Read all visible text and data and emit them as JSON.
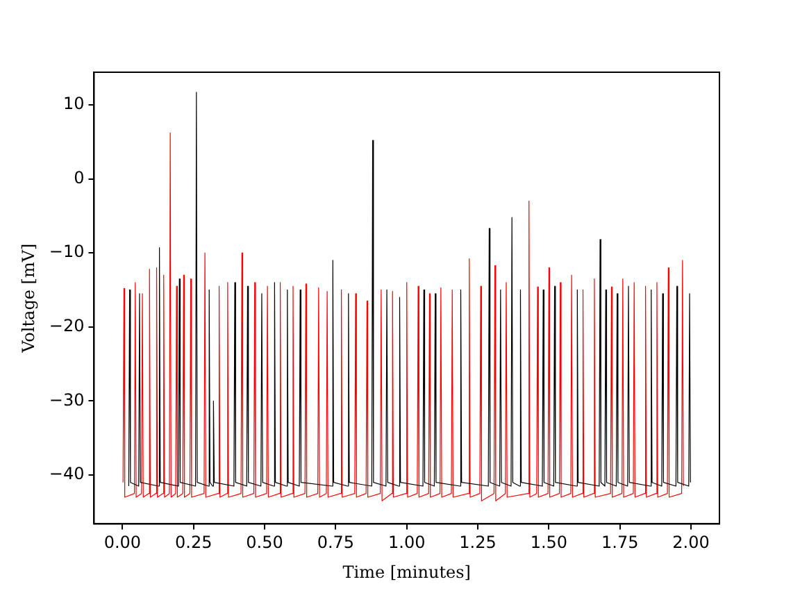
{
  "chart_data": {
    "type": "line",
    "xlabel": "Time [minutes]",
    "ylabel": "Voltage [mV]",
    "xlim": [
      -0.1,
      2.1
    ],
    "ylim": [
      -46.6,
      14.4
    ],
    "xticks": [
      {
        "value": 0,
        "label": "0.00"
      },
      {
        "value": 0.25,
        "label": "0.25"
      },
      {
        "value": 0.5,
        "label": "0.50"
      },
      {
        "value": 0.75,
        "label": "0.75"
      },
      {
        "value": 1,
        "label": "1.00"
      },
      {
        "value": 1.25,
        "label": "1.25"
      },
      {
        "value": 1.5,
        "label": "1.50"
      },
      {
        "value": 1.75,
        "label": "1.75"
      },
      {
        "value": 2,
        "label": "2.00"
      }
    ],
    "yticks": [
      {
        "value": -40,
        "label": "−40"
      },
      {
        "value": -30,
        "label": "−30"
      },
      {
        "value": -20,
        "label": "−20"
      },
      {
        "value": -10,
        "label": "−10"
      },
      0,
      10
    ],
    "grid": false,
    "legend": false,
    "marker": "none",
    "line_style": "solid",
    "series": [
      {
        "color": "#000000",
        "x": [
          0.022,
          0.025,
          0.028,
          0.057,
          0.06,
          0.063,
          0.127,
          0.13,
          0.133,
          0.197,
          0.2,
          0.203,
          0.257,
          0.26,
          0.263,
          0.302,
          0.305,
          0.308,
          0.317,
          0.32,
          0.323,
          0.392,
          0.395,
          0.398,
          0.437,
          0.44,
          0.443,
          0.487,
          0.49,
          0.493,
          0.532,
          0.535,
          0.538,
          0.577,
          0.58,
          0.583,
          0.622,
          0.625,
          0.628,
          0.737,
          0.74,
          0.743,
          0.792,
          0.795,
          0.798,
          0.877,
          0.88,
          0.883,
          0.927,
          0.93,
          0.933,
          0.972,
          0.975,
          0.978,
          1.057,
          1.06,
          1.063,
          1.097,
          1.1,
          1.103,
          1.187,
          1.19,
          1.193,
          1.287,
          1.29,
          1.293,
          1.327,
          1.33,
          1.333,
          1.367,
          1.37,
          1.373,
          1.397,
          1.4,
          1.403,
          1.477,
          1.48,
          1.483,
          1.517,
          1.52,
          1.523,
          1.597,
          1.6,
          1.603,
          1.677,
          1.68,
          1.683,
          1.697,
          1.7,
          1.703,
          1.737,
          1.74,
          1.743,
          1.777,
          1.78,
          1.783,
          1.857,
          1.86,
          1.863,
          1.897,
          1.9,
          1.903,
          1.947,
          1.95,
          1.953,
          1.992,
          1.995,
          1.998
        ],
        "values": [
          -41.5,
          -15,
          -41,
          -41.5,
          -15.5,
          -41,
          -41.5,
          -9.3,
          -41,
          -41.5,
          -13.5,
          -41,
          -41.5,
          11.7,
          -41,
          -41.5,
          -15,
          -41,
          -41.5,
          -30,
          -41,
          -41.5,
          -14,
          -41,
          -41.5,
          -14.5,
          -41,
          -41.5,
          -15.5,
          -41,
          -41.5,
          -14,
          -41,
          -41.5,
          -15,
          -41,
          -41.5,
          -15,
          -41,
          -41.5,
          -11,
          -41,
          -41.5,
          -15.5,
          -41,
          -41.5,
          5.2,
          -41,
          -41.5,
          -15,
          -41,
          -41.5,
          -16,
          -41,
          -41.5,
          -15,
          -41,
          -41.5,
          -15.5,
          -41,
          -41.5,
          -15,
          -41,
          -41.5,
          -6.7,
          -41,
          -41.5,
          -15,
          -41,
          -41.5,
          -5.2,
          -41,
          -41.5,
          -15,
          -41,
          -41.5,
          -15,
          -41,
          -41.5,
          -14.5,
          -41,
          -41.5,
          -15,
          -41,
          -41.5,
          -8.2,
          -41,
          -41.5,
          -15,
          -41,
          -41.5,
          -15.5,
          -41,
          -41.5,
          -14.5,
          -41,
          -41.5,
          -15,
          -41,
          -41.5,
          -15.5,
          -41,
          -41.5,
          -14.5,
          -41,
          -41.5,
          -15.5,
          -41
        ]
      },
      {
        "color": "#ff0000",
        "x": [
          0.002,
          0.005,
          0.008,
          0.042,
          0.045,
          0.048,
          0.067,
          0.07,
          0.073,
          0.092,
          0.095,
          0.098,
          0.117,
          0.12,
          0.123,
          0.142,
          0.145,
          0.148,
          0.165,
          0.168,
          0.171,
          0.187,
          0.19,
          0.193,
          0.212,
          0.215,
          0.218,
          0.237,
          0.24,
          0.243,
          0.287,
          0.29,
          0.293,
          0.337,
          0.34,
          0.343,
          0.367,
          0.37,
          0.373,
          0.417,
          0.42,
          0.423,
          0.462,
          0.465,
          0.468,
          0.507,
          0.51,
          0.513,
          0.552,
          0.555,
          0.558,
          0.597,
          0.6,
          0.603,
          0.642,
          0.645,
          0.648,
          0.687,
          0.69,
          0.693,
          0.717,
          0.72,
          0.723,
          0.767,
          0.77,
          0.773,
          0.817,
          0.82,
          0.823,
          0.857,
          0.86,
          0.863,
          0.907,
          0.91,
          0.913,
          0.947,
          0.95,
          0.953,
          0.997,
          1.0,
          1.003,
          1.037,
          1.04,
          1.043,
          1.077,
          1.08,
          1.083,
          1.117,
          1.12,
          1.123,
          1.157,
          1.16,
          1.163,
          1.217,
          1.22,
          1.223,
          1.257,
          1.26,
          1.263,
          1.307,
          1.31,
          1.313,
          1.347,
          1.35,
          1.353,
          1.427,
          1.43,
          1.433,
          1.457,
          1.46,
          1.463,
          1.497,
          1.5,
          1.503,
          1.537,
          1.54,
          1.543,
          1.577,
          1.58,
          1.583,
          1.617,
          1.62,
          1.623,
          1.657,
          1.66,
          1.663,
          1.717,
          1.72,
          1.723,
          1.757,
          1.76,
          1.763,
          1.797,
          1.8,
          1.803,
          1.837,
          1.84,
          1.843,
          1.877,
          1.88,
          1.883,
          1.917,
          1.92,
          1.923,
          1.967,
          1.97,
          1.973
        ],
        "values": [
          -41,
          -14.8,
          -43,
          -42.5,
          -14,
          -43,
          -42.5,
          -15.5,
          -43,
          -42.5,
          -12.2,
          -43,
          -42.5,
          -12,
          -43,
          -42.5,
          -13,
          -43,
          -42.5,
          6.2,
          -43,
          -42.5,
          -14.5,
          -43,
          -42.5,
          -13,
          -43,
          -42.5,
          -13.5,
          -43,
          -42.5,
          -10,
          -43,
          -42.5,
          -14.5,
          -43,
          -42.5,
          -14,
          -43,
          -42.5,
          -10,
          -43,
          -42.5,
          -14,
          -43,
          -42.5,
          -14.5,
          -43,
          -42.5,
          -14,
          -43,
          -42.5,
          -14.5,
          -43,
          -42.5,
          -14.2,
          -43,
          -42.5,
          -14.7,
          -43,
          -42.5,
          -15.2,
          -43,
          -42.5,
          -15,
          -43,
          -42.5,
          -15.5,
          -43,
          -42.5,
          -16.5,
          -43,
          -42.5,
          -15,
          -43.5,
          -42.5,
          -15.2,
          -43,
          -42.5,
          -14,
          -43,
          -42.5,
          -14.5,
          -43,
          -42.5,
          -15.5,
          -43,
          -42.5,
          -14.7,
          -43,
          -42.5,
          -15,
          -43,
          -42.5,
          -10.8,
          -43,
          -42.5,
          -14.5,
          -43.5,
          -42.5,
          -11.7,
          -43.5,
          -42.5,
          -14,
          -43,
          -42.5,
          -3,
          -43,
          -42.5,
          -14.6,
          -43,
          -42.5,
          -12,
          -43,
          -42.5,
          -14,
          -43,
          -42.5,
          -13,
          -43,
          -42.5,
          -15,
          -43,
          -42.5,
          -13.5,
          -43,
          -42.5,
          -14.6,
          -43,
          -42.5,
          -13.5,
          -43,
          -42.5,
          -14,
          -43,
          -42.5,
          -14.5,
          -43,
          -42.5,
          -14,
          -43,
          -42.5,
          -12,
          -43,
          -42.5,
          -11,
          -41.5
        ]
      }
    ]
  }
}
